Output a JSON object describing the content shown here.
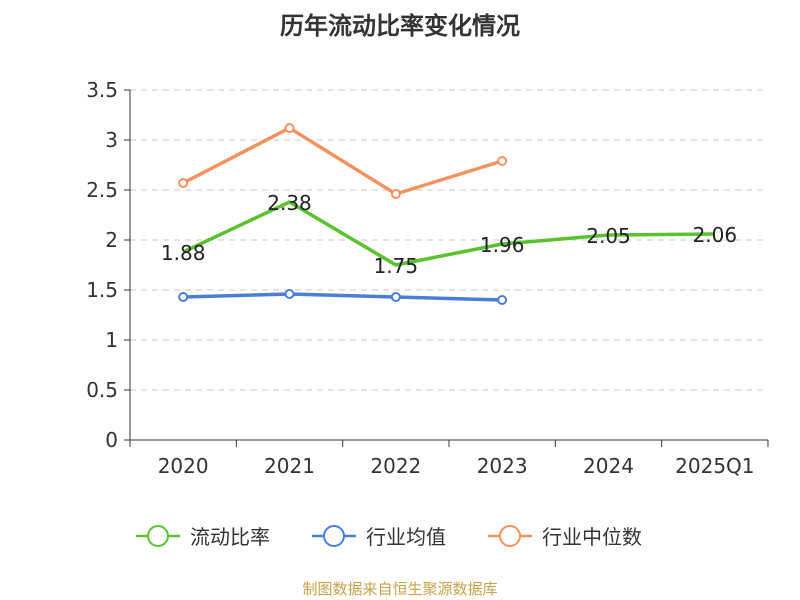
{
  "chart_data": {
    "type": "line",
    "title": "历年流动比率变化情况",
    "categories": [
      "2020",
      "2021",
      "2022",
      "2023",
      "2024",
      "2025Q1"
    ],
    "ylim": [
      0,
      3.5
    ],
    "yticks": [
      0,
      0.5,
      1,
      1.5,
      2,
      2.5,
      3,
      3.5
    ],
    "ytick_labels": [
      "0",
      "0.5",
      "1",
      "1.5",
      "2",
      "2.5",
      "3",
      "3.5"
    ],
    "grid": true,
    "legend_position": "bottom",
    "series": [
      {
        "name": "流动比率",
        "color": "#5cc12f",
        "values": [
          1.88,
          2.38,
          1.75,
          1.96,
          2.05,
          2.06
        ],
        "labels": [
          "1.88",
          "2.38",
          "1.75",
          "1.96",
          "2.05",
          "2.06"
        ],
        "show_markers": false
      },
      {
        "name": "行业均值",
        "color": "#4a7fd9",
        "values": [
          1.43,
          1.46,
          1.43,
          1.4,
          null,
          null
        ],
        "show_markers": true
      },
      {
        "name": "行业中位数",
        "color": "#f4925f",
        "values": [
          2.57,
          3.12,
          2.46,
          2.79,
          null,
          null
        ],
        "show_markers": true
      }
    ]
  },
  "source_note": "制图数据来自恒生聚源数据库"
}
